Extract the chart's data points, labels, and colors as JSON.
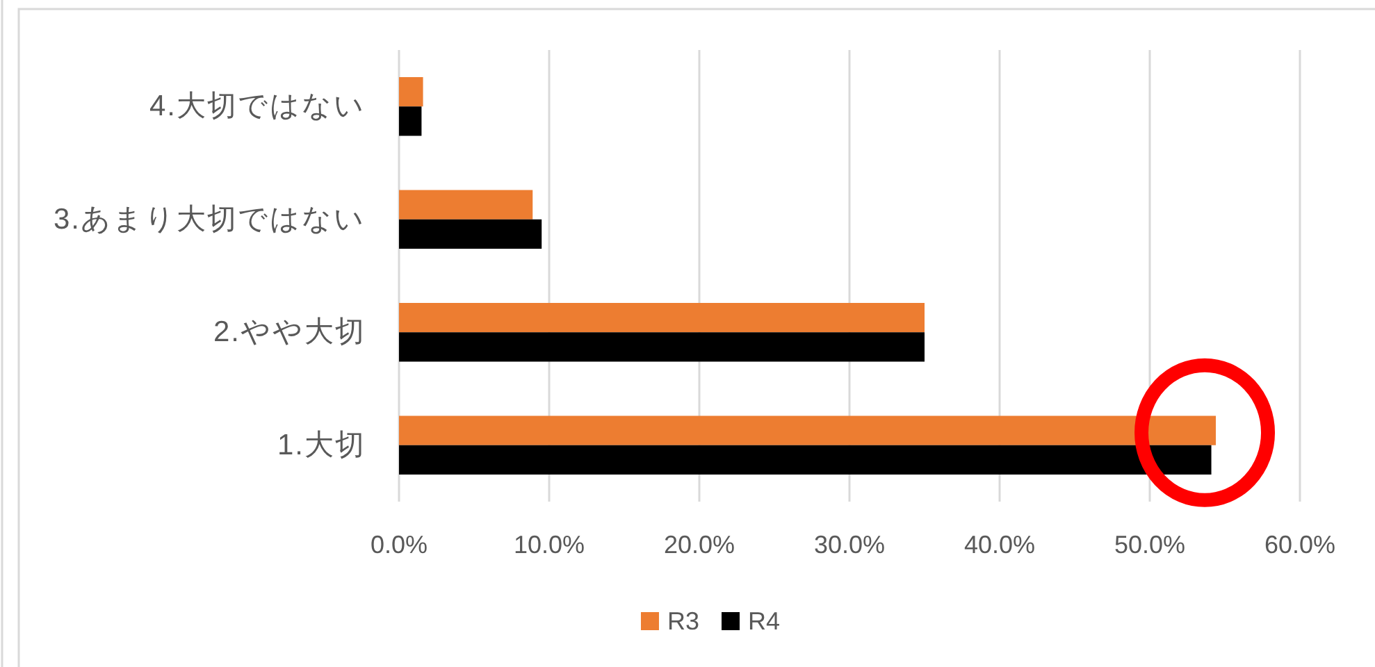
{
  "chart_data": {
    "type": "bar",
    "orientation": "horizontal",
    "categories": [
      "4.大切ではない",
      "3.あまり大切ではない",
      "2.やや大切",
      "1.大切"
    ],
    "series": [
      {
        "name": "R3",
        "color": "#ed7d31",
        "values": [
          1.6,
          8.9,
          35.0,
          54.4
        ]
      },
      {
        "name": "R4",
        "color": "#000000",
        "values": [
          1.5,
          9.5,
          35.0,
          54.1
        ]
      }
    ],
    "xlim": [
      0,
      60
    ],
    "xticks": [
      {
        "value": 0,
        "label": "0.0%"
      },
      {
        "value": 10,
        "label": "10.0%"
      },
      {
        "value": 20,
        "label": "20.0%"
      },
      {
        "value": 30,
        "label": "30.0%"
      },
      {
        "value": 40,
        "label": "40.0%"
      },
      {
        "value": 50,
        "label": "50.0%"
      },
      {
        "value": 60,
        "label": "60.0%"
      }
    ],
    "grid": "x",
    "legend": "bottom"
  }
}
